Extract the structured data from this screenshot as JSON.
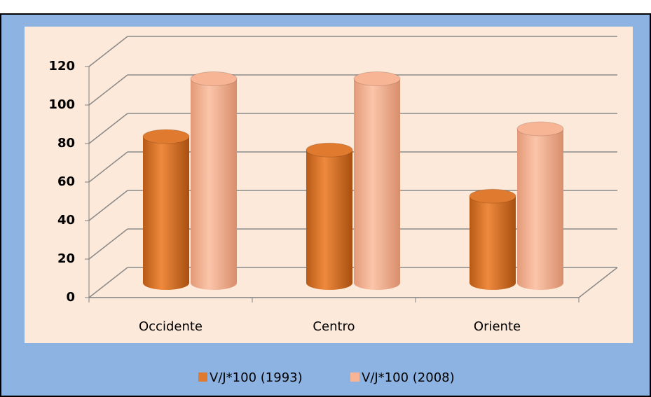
{
  "chart_data": {
    "type": "bar3d",
    "categories": [
      "Occidente",
      "Centro",
      "Oriente"
    ],
    "series": [
      {
        "name": "V/J*100 (1993)",
        "color": "#e07a2e",
        "values": [
          76,
          69,
          45
        ]
      },
      {
        "name": "V/J*100 (2008)",
        "color": "#f8b595",
        "values": [
          106,
          106,
          80
        ]
      }
    ],
    "ylim": [
      0,
      120
    ],
    "yticks": [
      0,
      20,
      40,
      60,
      80,
      100,
      120
    ],
    "grid": true,
    "legend": "bottom"
  }
}
